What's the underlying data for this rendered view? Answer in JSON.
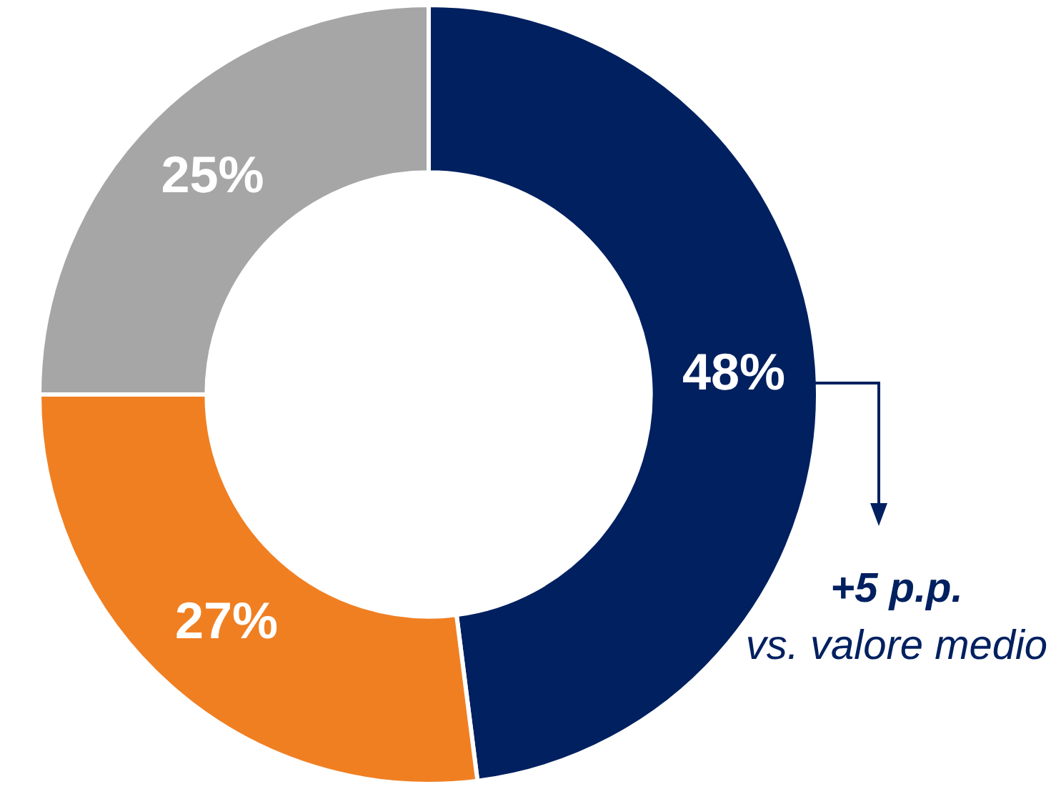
{
  "chart_data": {
    "type": "donut",
    "categories": [
      null,
      null,
      null
    ],
    "values": [
      48,
      27,
      25
    ],
    "colors": [
      "#002060",
      "#f07f22",
      "#a6a6a6"
    ],
    "value_labels": [
      "48%",
      "27%",
      "25%"
    ],
    "legend": false,
    "annotations": [
      "+5 p.p.",
      "vs. valore medio"
    ]
  }
}
